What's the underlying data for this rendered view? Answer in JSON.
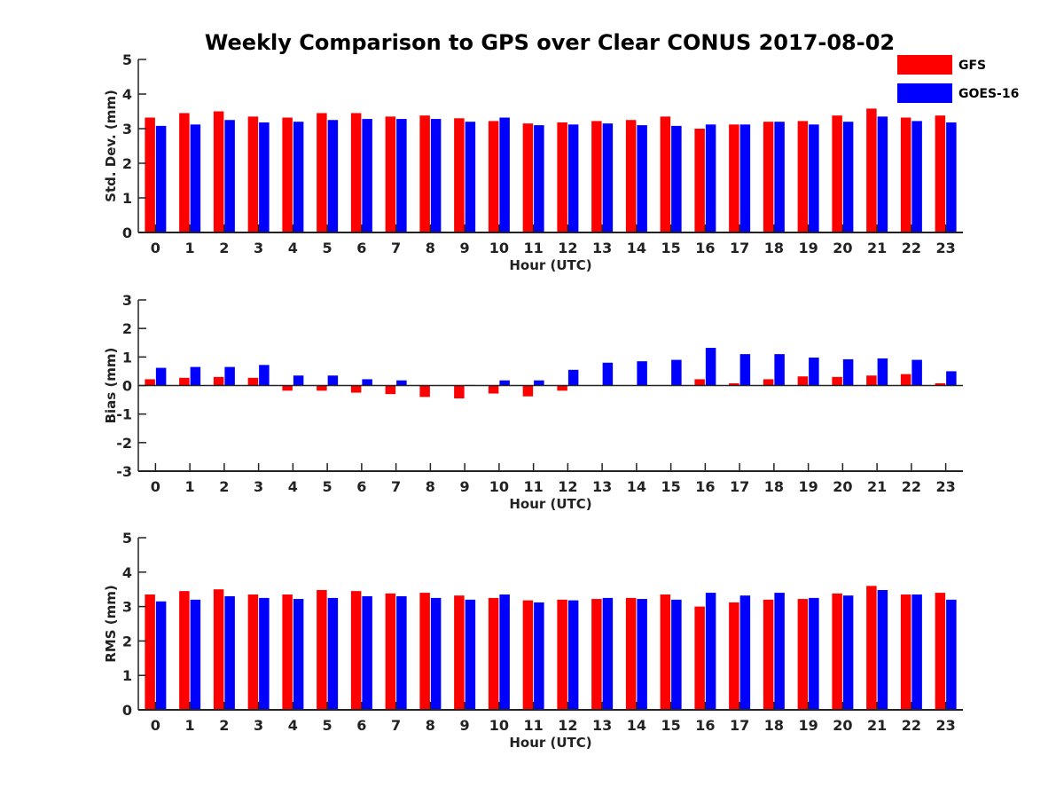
{
  "chart_data": {
    "type": "bar",
    "title": "Weekly Comparison to GPS over Clear CONUS 2017-08-02",
    "legend": {
      "placement": "top-right",
      "entries": [
        {
          "name": "GFS",
          "color": "#ff0000"
        },
        {
          "name": "GOES-16",
          "color": "#0000ff"
        }
      ]
    },
    "categories": [
      "0",
      "1",
      "2",
      "3",
      "4",
      "5",
      "6",
      "7",
      "8",
      "9",
      "10",
      "11",
      "12",
      "13",
      "14",
      "15",
      "16",
      "17",
      "18",
      "19",
      "20",
      "21",
      "22",
      "23"
    ],
    "panels": [
      {
        "id": "std",
        "xlabel": "Hour (UTC)",
        "ylabel": "Std. Dev. (mm)",
        "ylim": [
          0,
          5
        ],
        "yticks": [
          "0",
          "1",
          "2",
          "3",
          "4",
          "5"
        ],
        "series": [
          {
            "name": "GFS",
            "color": "#ff0000",
            "values": [
              3.32,
              3.45,
              3.5,
              3.35,
              3.32,
              3.45,
              3.45,
              3.35,
              3.38,
              3.3,
              3.22,
              3.15,
              3.18,
              3.22,
              3.25,
              3.35,
              3.0,
              3.12,
              3.2,
              3.22,
              3.38,
              3.58,
              3.32,
              3.38
            ]
          },
          {
            "name": "GOES-16",
            "color": "#0000ff",
            "values": [
              3.08,
              3.12,
              3.25,
              3.18,
              3.2,
              3.25,
              3.28,
              3.28,
              3.28,
              3.2,
              3.32,
              3.1,
              3.12,
              3.15,
              3.1,
              3.08,
              3.12,
              3.12,
              3.2,
              3.12,
              3.2,
              3.35,
              3.22,
              3.18
            ]
          }
        ]
      },
      {
        "id": "bias",
        "xlabel": "Hour (UTC)",
        "ylabel": "Bias (mm)",
        "ylim": [
          -3,
          3
        ],
        "yticks": [
          "-3",
          "-2",
          "-1",
          "0",
          "1",
          "2",
          "3"
        ],
        "series": [
          {
            "name": "GFS",
            "color": "#ff0000",
            "values": [
              0.22,
              0.27,
              0.3,
              0.27,
              -0.18,
              -0.18,
              -0.25,
              -0.3,
              -0.4,
              -0.45,
              -0.28,
              -0.38,
              -0.18,
              0.0,
              0.0,
              0.0,
              0.22,
              0.08,
              0.22,
              0.32,
              0.3,
              0.35,
              0.4,
              0.08
            ]
          },
          {
            "name": "GOES-16",
            "color": "#0000ff",
            "values": [
              0.62,
              0.65,
              0.65,
              0.72,
              0.35,
              0.35,
              0.22,
              0.18,
              0.0,
              0.02,
              0.18,
              0.18,
              0.55,
              0.8,
              0.85,
              0.9,
              1.32,
              1.1,
              1.1,
              0.98,
              0.92,
              0.95,
              0.9,
              0.5
            ]
          }
        ]
      },
      {
        "id": "rms",
        "xlabel": "Hour (UTC)",
        "ylabel": "RMS (mm)",
        "ylim": [
          0,
          5
        ],
        "yticks": [
          "0",
          "1",
          "2",
          "3",
          "4",
          "5"
        ],
        "series": [
          {
            "name": "GFS",
            "color": "#ff0000",
            "values": [
              3.35,
              3.45,
              3.5,
              3.35,
              3.35,
              3.48,
              3.45,
              3.38,
              3.4,
              3.32,
              3.25,
              3.18,
              3.2,
              3.22,
              3.25,
              3.35,
              3.0,
              3.12,
              3.2,
              3.22,
              3.38,
              3.6,
              3.35,
              3.4
            ]
          },
          {
            "name": "GOES-16",
            "color": "#0000ff",
            "values": [
              3.15,
              3.2,
              3.3,
              3.25,
              3.22,
              3.25,
              3.3,
              3.3,
              3.25,
              3.2,
              3.35,
              3.12,
              3.18,
              3.25,
              3.22,
              3.2,
              3.4,
              3.32,
              3.4,
              3.25,
              3.32,
              3.48,
              3.35,
              3.2
            ]
          }
        ]
      }
    ]
  }
}
